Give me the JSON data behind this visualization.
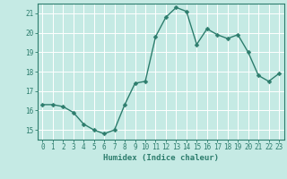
{
  "x": [
    0,
    1,
    2,
    3,
    4,
    5,
    6,
    7,
    8,
    9,
    10,
    11,
    12,
    13,
    14,
    15,
    16,
    17,
    18,
    19,
    20,
    21,
    22,
    23
  ],
  "y": [
    16.3,
    16.3,
    16.2,
    15.9,
    15.3,
    15.0,
    14.8,
    15.0,
    16.3,
    17.4,
    17.5,
    19.8,
    20.8,
    21.3,
    21.1,
    19.4,
    20.2,
    19.9,
    19.7,
    19.9,
    19.0,
    17.8,
    17.5,
    17.9
  ],
  "line_color": "#2d7d6d",
  "marker": "D",
  "markersize": 2.5,
  "linewidth": 1.0,
  "bg_color": "#c5eae4",
  "grid_color": "#ffffff",
  "xlabel": "Humidex (Indice chaleur)",
  "xlim": [
    -0.5,
    23.5
  ],
  "ylim": [
    14.5,
    21.5
  ],
  "yticks": [
    15,
    16,
    17,
    18,
    19,
    20,
    21
  ],
  "xticks": [
    0,
    1,
    2,
    3,
    4,
    5,
    6,
    7,
    8,
    9,
    10,
    11,
    12,
    13,
    14,
    15,
    16,
    17,
    18,
    19,
    20,
    21,
    22,
    23
  ],
  "tick_color": "#2d7d6d",
  "label_color": "#2d7d6d",
  "xlabel_fontsize": 6.5,
  "tick_fontsize": 5.5
}
